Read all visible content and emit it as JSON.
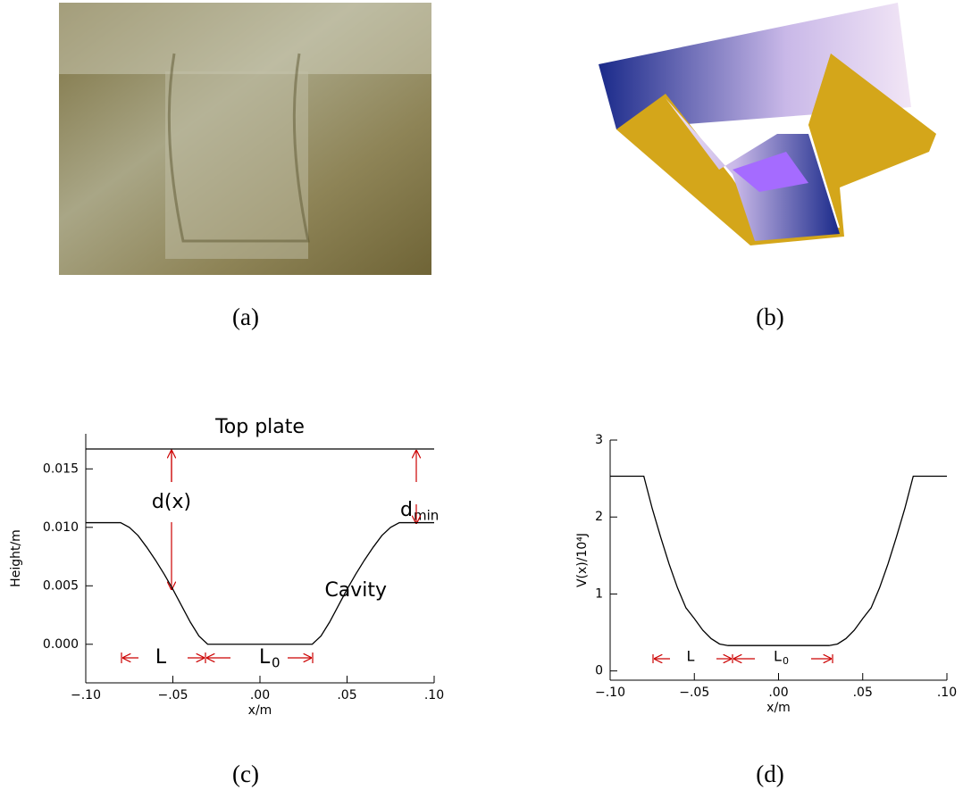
{
  "panels": {
    "a": "(a)",
    "b": "(b)",
    "c": "(c)",
    "d": "(d)"
  },
  "chart_data": [
    {
      "type": "line",
      "xlabel": "x/m",
      "ylabel": "Height/m",
      "x": [
        -0.1,
        -0.08,
        -0.075,
        -0.07,
        -0.065,
        -0.06,
        -0.055,
        -0.05,
        -0.045,
        -0.04,
        -0.035,
        -0.03,
        0.03,
        0.035,
        0.04,
        0.045,
        0.05,
        0.055,
        0.06,
        0.065,
        0.07,
        0.075,
        0.08,
        0.1
      ],
      "series": [
        {
          "name": "Cavity",
          "color": "#000000",
          "values": [
            0.0104,
            0.0104,
            0.01,
            0.0093,
            0.0083,
            0.0072,
            0.006,
            0.0047,
            0.0033,
            0.0019,
            0.0007,
            0.0,
            0.0,
            0.0007,
            0.0019,
            0.0033,
            0.0047,
            0.006,
            0.0072,
            0.0083,
            0.0093,
            0.01,
            0.0104,
            0.0104
          ]
        },
        {
          "name": "Top plate",
          "color": "#000000",
          "values": [
            0.0167,
            0.0167,
            0.0167,
            0.0167,
            0.0167,
            0.0167,
            0.0167,
            0.0167,
            0.0167,
            0.0167,
            0.0167,
            0.0167,
            0.0167,
            0.0167,
            0.0167,
            0.0167,
            0.0167,
            0.0167,
            0.0167,
            0.0167,
            0.0167,
            0.0167,
            0.0167,
            0.0167
          ]
        }
      ],
      "xlim": [
        -0.1,
        0.1
      ],
      "xticks": [
        {
          "value": -0.1,
          "label": "−.10"
        },
        {
          "value": -0.05,
          "label": "−.05"
        },
        {
          "value": 0,
          "label": ".00"
        },
        {
          "value": 0.05,
          "label": ".05"
        },
        {
          "value": 0.1,
          "label": ".10"
        }
      ],
      "ylim": [
        -0.0033,
        0.018
      ],
      "yticks": [
        {
          "value": 0,
          "label": "0.000"
        },
        {
          "value": 0.005,
          "label": "0.005"
        },
        {
          "value": 0.01,
          "label": "0.010"
        },
        {
          "value": 0.015,
          "label": "0.015"
        }
      ],
      "annotations": {
        "d_x": "d(x)",
        "d_min": {
          "base": "d",
          "sub": "min"
        },
        "L": "L",
        "L0": {
          "base": "L",
          "sub": "0"
        }
      }
    },
    {
      "type": "line",
      "xlabel": "x/m",
      "ylabel": "V(x)/10⁴J",
      "x": [
        -0.1,
        -0.08,
        -0.075,
        -0.07,
        -0.065,
        -0.06,
        -0.055,
        -0.05,
        -0.045,
        -0.04,
        -0.035,
        -0.03,
        0.03,
        0.035,
        0.04,
        0.045,
        0.05,
        0.055,
        0.06,
        0.065,
        0.07,
        0.075,
        0.08,
        0.1
      ],
      "values": [
        2.53,
        2.53,
        2.11,
        1.74,
        1.39,
        1.08,
        0.82,
        0.68,
        0.53,
        0.42,
        0.35,
        0.33,
        0.33,
        0.35,
        0.42,
        0.53,
        0.68,
        0.82,
        1.08,
        1.39,
        1.74,
        2.11,
        2.53,
        2.53
      ],
      "color": "#000000",
      "xlim": [
        -0.1,
        0.1
      ],
      "xticks": [
        {
          "value": -0.1,
          "label": "−.10"
        },
        {
          "value": -0.05,
          "label": "−.05"
        },
        {
          "value": 0,
          "label": ".00"
        },
        {
          "value": 0.05,
          "label": ".05"
        },
        {
          "value": 0.1,
          "label": ".10"
        }
      ],
      "ylim": [
        -0.12,
        3.0
      ],
      "yticks": [
        0,
        1,
        2,
        3
      ],
      "annotations": {
        "L": "L",
        "L0": {
          "base": "L",
          "sub": "0"
        }
      }
    }
  ]
}
